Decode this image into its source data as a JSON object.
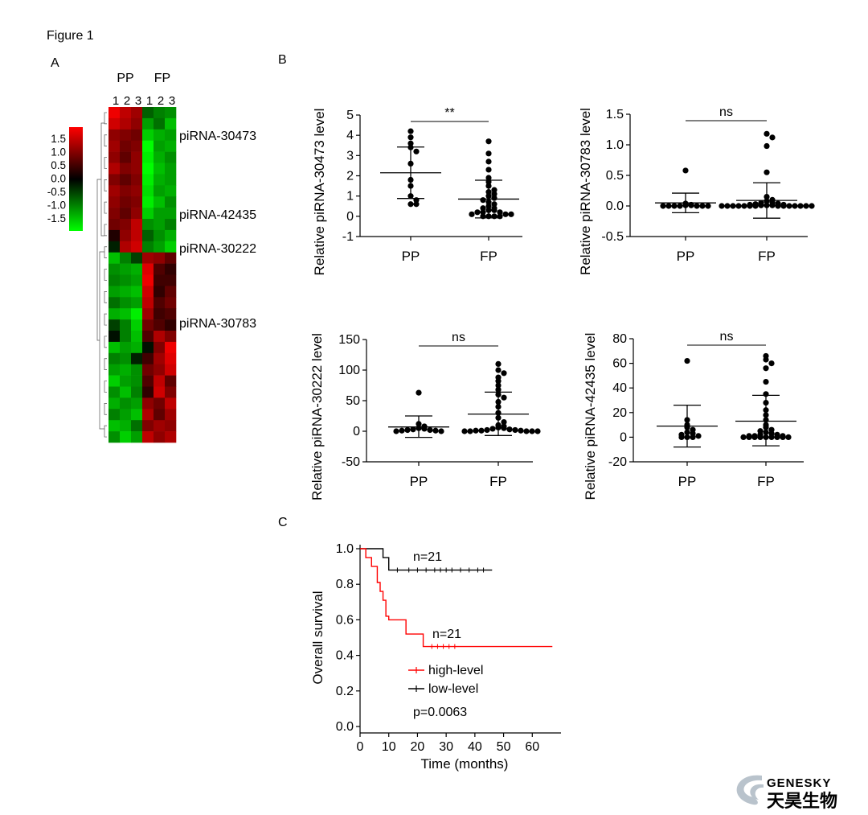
{
  "figure_title": "Figure 1",
  "panel_labels": {
    "a": "A",
    "b": "B",
    "c": "C"
  },
  "heatmap": {
    "group_labels": [
      "PP",
      "FP"
    ],
    "column_numbers": [
      "1",
      "2",
      "3",
      "1",
      "2",
      "3"
    ],
    "scale_labels": [
      "1.5",
      "1.0",
      "0.5",
      "0.0",
      "-0.5",
      "-1.0",
      "-1.5"
    ],
    "row_annotations": [
      "piRNA-30473",
      "piRNA-42435",
      "piRNA-30222",
      "piRNA-30783"
    ],
    "colors": {
      "high": "#ff0000",
      "mid": "#000000",
      "low": "#00ff00"
    },
    "values": [
      [
        1.5,
        1.2,
        1.0,
        -0.6,
        -0.8,
        -0.9
      ],
      [
        1.3,
        1.1,
        0.9,
        -1.0,
        -0.7,
        -1.2
      ],
      [
        0.9,
        0.8,
        0.7,
        -1.3,
        -1.1,
        -1.0
      ],
      [
        1.0,
        0.7,
        0.8,
        -1.6,
        -1.0,
        -1.1
      ],
      [
        0.9,
        0.6,
        0.9,
        -1.5,
        -1.1,
        -0.9
      ],
      [
        1.1,
        0.8,
        0.9,
        -1.6,
        -1.2,
        -1.0
      ],
      [
        0.8,
        0.6,
        0.8,
        -1.5,
        -1.1,
        -1.0
      ],
      [
        1.0,
        0.8,
        0.9,
        -1.4,
        -1.0,
        -1.1
      ],
      [
        0.9,
        0.7,
        0.8,
        -1.5,
        -1.2,
        -0.9
      ],
      [
        0.8,
        0.6,
        0.9,
        -1.3,
        -1.0,
        -1.0
      ],
      [
        0.7,
        0.8,
        1.2,
        -0.9,
        -1.0,
        -0.8
      ],
      [
        0.2,
        0.9,
        1.2,
        -0.6,
        -0.9,
        -1.1
      ],
      [
        -0.2,
        1.1,
        1.3,
        -0.8,
        -1.0,
        -1.3
      ],
      [
        -1.2,
        -0.8,
        -0.4,
        1.0,
        0.9,
        0.6
      ],
      [
        -0.9,
        -1.0,
        -1.1,
        1.4,
        0.5,
        0.3
      ],
      [
        -0.8,
        -0.9,
        -1.0,
        1.5,
        0.4,
        0.4
      ],
      [
        -1.0,
        -1.1,
        -1.2,
        1.3,
        0.3,
        0.6
      ],
      [
        -0.7,
        -0.9,
        -1.0,
        1.2,
        0.5,
        0.7
      ],
      [
        -1.1,
        -1.2,
        -1.5,
        1.0,
        0.4,
        0.5
      ],
      [
        -0.4,
        -0.8,
        -1.3,
        0.7,
        0.5,
        0.3
      ],
      [
        -0.1,
        -0.8,
        -1.2,
        0.5,
        1.1,
        0.8
      ],
      [
        -1.2,
        -1.0,
        -1.1,
        -0.1,
        0.8,
        1.5
      ],
      [
        -0.8,
        -0.9,
        -0.2,
        0.4,
        1.0,
        1.4
      ],
      [
        -1.0,
        -1.1,
        -0.9,
        0.7,
        0.9,
        1.3
      ],
      [
        -1.3,
        -1.0,
        -0.9,
        0.5,
        1.2,
        0.6
      ],
      [
        -0.9,
        -1.2,
        -0.8,
        0.3,
        1.3,
        0.8
      ],
      [
        -1.1,
        -0.9,
        -1.0,
        0.9,
        0.7,
        1.2
      ],
      [
        -0.8,
        -1.0,
        -1.2,
        1.1,
        0.6,
        1.0
      ],
      [
        -1.2,
        -1.1,
        -0.7,
        0.8,
        1.0,
        0.9
      ],
      [
        -0.9,
        -1.3,
        -1.0,
        1.2,
        0.9,
        1.1
      ]
    ]
  },
  "chart_data": [
    {
      "type": "scatter",
      "ylabel": "Relative piRNA-30473 level",
      "categories": [
        "PP",
        "FP"
      ],
      "ylim": [
        -1,
        5
      ],
      "yticks": [
        -1,
        0,
        1,
        2,
        3,
        4,
        5
      ],
      "significance": "**",
      "series": [
        {
          "values": [
            4.2,
            3.9,
            3.6,
            3.4,
            3.2,
            2.6,
            1.8,
            1.5,
            1.0,
            0.8,
            0.6,
            0.6
          ],
          "mean": 2.15,
          "sd_upper": 3.42,
          "sd_lower": 0.88
        },
        {
          "values": [
            3.7,
            3.1,
            2.7,
            2.3,
            1.9,
            1.7,
            1.5,
            1.3,
            1.2,
            1.1,
            1.0,
            0.9,
            0.8,
            0.7,
            0.6,
            0.5,
            0.4,
            0.4,
            0.3,
            0.3,
            0.2,
            0.2,
            0.2,
            0.1,
            0.1,
            0.1,
            0.0,
            0.0,
            0.0,
            0.0
          ],
          "mean": 0.85,
          "sd_upper": 1.78,
          "sd_lower": -0.08
        }
      ]
    },
    {
      "type": "scatter",
      "ylabel": "Relative piRNA-30783 level",
      "categories": [
        "PP",
        "FP"
      ],
      "ylim": [
        -0.5,
        1.5
      ],
      "yticks": [
        -0.5,
        0.0,
        0.5,
        1.0,
        1.5
      ],
      "ytick_labels": [
        "-0.5",
        "0.0",
        "0.5",
        "1.0",
        "1.5"
      ],
      "significance": "ns",
      "series": [
        {
          "values": [
            0.58,
            0.04,
            0.02,
            0.01,
            0.01,
            0.0,
            0.0,
            0.0,
            0.0,
            0.0,
            0.0,
            0.0
          ],
          "mean": 0.05,
          "sd_upper": 0.21,
          "sd_lower": -0.11
        },
        {
          "values": [
            1.18,
            1.12,
            0.98,
            0.55,
            0.15,
            0.1,
            0.08,
            0.06,
            0.05,
            0.04,
            0.03,
            0.02,
            0.02,
            0.01,
            0.01,
            0.01,
            0.0,
            0.0,
            0.0,
            0.0,
            0.0,
            0.0,
            0.0,
            0.0,
            0.0,
            0.0,
            0.0,
            0.0,
            0.0,
            0.0
          ],
          "mean": 0.09,
          "sd_upper": 0.38,
          "sd_lower": -0.2
        }
      ]
    },
    {
      "type": "scatter",
      "ylabel": "Relative piRNA-30222 level",
      "categories": [
        "PP",
        "FP"
      ],
      "ylim": [
        -50,
        150
      ],
      "yticks": [
        -50,
        0,
        50,
        100,
        150
      ],
      "significance": "ns",
      "series": [
        {
          "values": [
            63,
            12,
            8,
            5,
            4,
            3,
            2,
            2,
            1,
            1,
            0,
            0
          ],
          "mean": 7,
          "sd_upper": 25,
          "sd_lower": -10
        },
        {
          "values": [
            110,
            100,
            95,
            88,
            82,
            75,
            68,
            60,
            55,
            48,
            40,
            30,
            22,
            15,
            10,
            8,
            6,
            5,
            4,
            3,
            2,
            2,
            1,
            1,
            1,
            0,
            0,
            0,
            0,
            0
          ],
          "mean": 28,
          "sd_upper": 64,
          "sd_lower": -7
        }
      ]
    },
    {
      "type": "scatter",
      "ylabel": "Relative piRNA-42435 level",
      "categories": [
        "PP",
        "FP"
      ],
      "ylim": [
        -20,
        80
      ],
      "yticks": [
        -20,
        0,
        20,
        40,
        60,
        80
      ],
      "significance": "ns",
      "series": [
        {
          "values": [
            62,
            14,
            10,
            8,
            6,
            4,
            3,
            2,
            1,
            0,
            0,
            0
          ],
          "mean": 9,
          "sd_upper": 26,
          "sd_lower": -8
        },
        {
          "values": [
            66,
            63,
            60,
            56,
            45,
            35,
            28,
            22,
            18,
            14,
            10,
            8,
            6,
            5,
            4,
            3,
            2,
            2,
            1,
            1,
            1,
            0,
            0,
            0,
            0,
            0,
            0,
            0,
            0,
            0
          ],
          "mean": 13,
          "sd_upper": 34,
          "sd_lower": -7
        }
      ]
    },
    {
      "type": "line",
      "xlabel": "Time (months)",
      "ylabel": "Overall survival",
      "xlim": [
        0,
        70
      ],
      "ylim": [
        0,
        1.0
      ],
      "xticks": [
        0,
        10,
        20,
        30,
        40,
        50,
        60
      ],
      "yticks": [
        0.0,
        0.2,
        0.4,
        0.6,
        0.8,
        1.0
      ],
      "ytick_labels": [
        "0.0",
        "0.2",
        "0.4",
        "0.6",
        "0.8",
        "1.0"
      ],
      "legend": [
        "high-level",
        "low-level"
      ],
      "pvalue": "p=0.0063",
      "series": [
        {
          "name": "low-level",
          "color": "#000000",
          "n_label": "n=21",
          "steps": [
            [
              0,
              1.0
            ],
            [
              8,
              0.95
            ],
            [
              10,
              0.88
            ],
            [
              46,
              0.88
            ]
          ],
          "censor_x": [
            13,
            17,
            20,
            23,
            26,
            28,
            30,
            32,
            35,
            38,
            41,
            43
          ]
        },
        {
          "name": "high-level",
          "color": "#ff0000",
          "n_label": "n=21",
          "steps": [
            [
              0,
              1.0
            ],
            [
              2,
              0.95
            ],
            [
              4,
              0.9
            ],
            [
              6,
              0.81
            ],
            [
              7,
              0.76
            ],
            [
              8,
              0.71
            ],
            [
              9,
              0.62
            ],
            [
              10,
              0.6
            ],
            [
              16,
              0.52
            ],
            [
              22,
              0.45
            ],
            [
              67,
              0.45
            ]
          ],
          "censor_x": [
            25,
            27,
            29,
            31,
            33
          ]
        }
      ]
    }
  ],
  "watermark": {
    "text_en": "GENESKY",
    "text_cn": "天昊生物",
    "color": "#b9c3cc"
  }
}
